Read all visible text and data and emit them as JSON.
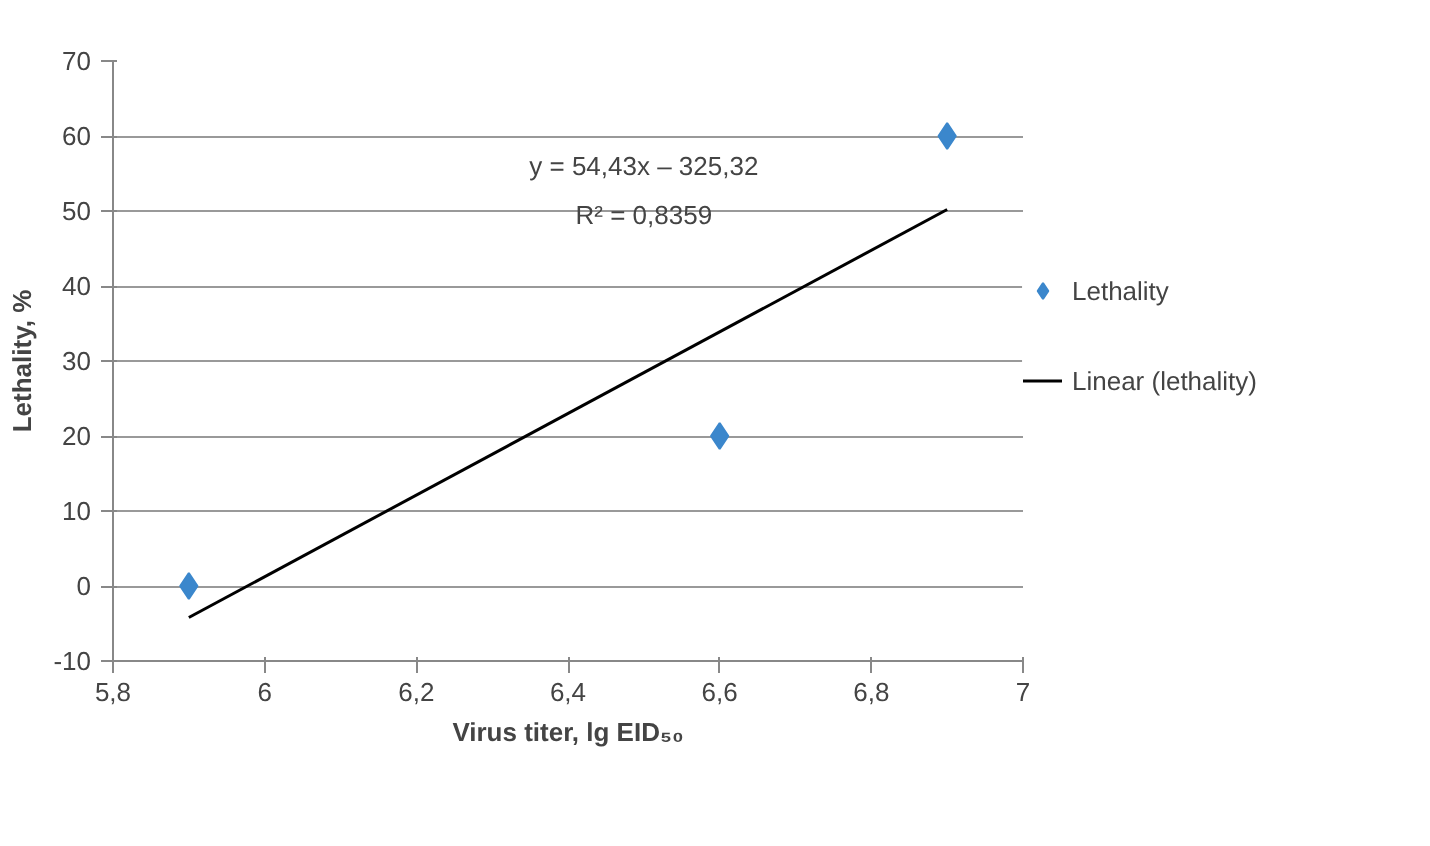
{
  "chart_data": {
    "type": "scatter",
    "xlabel": "Virus titer, lg EID₅₀",
    "ylabel": "Lethality, %",
    "xlim": [
      5.8,
      7
    ],
    "xticks": [
      {
        "value": 5.8,
        "label": "5,8"
      },
      6,
      {
        "value": 6.2,
        "label": "6,2"
      },
      {
        "value": 6.4,
        "label": "6,4"
      },
      {
        "value": 6.6,
        "label": "6,6"
      },
      {
        "value": 6.8,
        "label": "6,8"
      },
      7
    ],
    "ylim": [
      -10,
      70
    ],
    "yticks": [
      -10,
      0,
      10,
      20,
      30,
      40,
      50,
      60,
      70
    ],
    "grid": "y",
    "legend": "right",
    "series": [
      {
        "name": "Lethality",
        "marker": "diamond",
        "color": "#3b87cc",
        "x": [
          5.9,
          6.6,
          6.9
        ],
        "values": [
          0,
          20,
          60
        ]
      },
      {
        "name": "Linear (lethality)",
        "type": "line",
        "color": "#000000",
        "x": [
          5.9,
          6.9
        ],
        "values": [
          -4.2,
          50.2
        ]
      }
    ],
    "annotations": [
      "y = 54,43x – 325,32",
      "R² = 0,8359"
    ]
  }
}
